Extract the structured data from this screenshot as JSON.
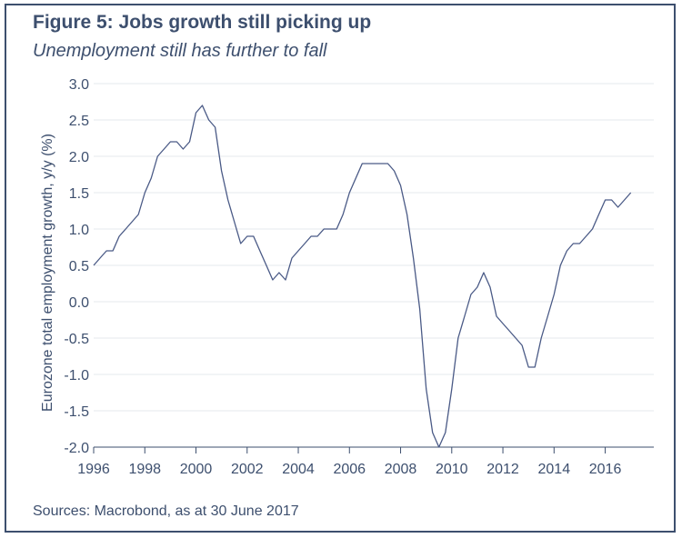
{
  "figure": {
    "title": "Figure 5: Jobs growth still picking up",
    "subtitle": "Unemployment still has further to fall",
    "source": "Sources: Macrobond, as at 30 June 2017"
  },
  "colors": {
    "text": "#3d4f6e",
    "line": "#4a5a86",
    "grid": "#e6e8ee",
    "border": "#3d4f6e"
  },
  "chart_data": {
    "type": "line",
    "title": "",
    "xlabel": "",
    "ylabel": "Eurozone total employment growth, y/y (%)",
    "xlim": [
      1996,
      2017.9
    ],
    "ylim": [
      -2.0,
      3.0
    ],
    "grid": true,
    "x_ticks": [
      1996,
      1998,
      2000,
      2002,
      2004,
      2006,
      2008,
      2010,
      2012,
      2014,
      2016
    ],
    "x_tick_labels": [
      "1996",
      "1998",
      "2000",
      "2002",
      "2004",
      "2006",
      "2008",
      "2010",
      "2012",
      "2014",
      "2016"
    ],
    "y_ticks": [
      3.0,
      2.5,
      2.0,
      1.5,
      1.0,
      0.5,
      0.0,
      -0.5,
      -1.0,
      -1.5,
      -2.0
    ],
    "y_tick_labels": [
      "3.0",
      "2.5",
      "2.0",
      "1.5",
      "1.0",
      "0.5",
      "0.0",
      "-0.5",
      "-1.0",
      "-1.5",
      "-2.0"
    ],
    "series": [
      {
        "x": [
          1996.0,
          1996.25,
          1996.5,
          1996.75,
          1997.0,
          1997.25,
          1997.5,
          1997.75,
          1998.0,
          1998.25,
          1998.5,
          1998.75,
          1999.0,
          1999.25,
          1999.5,
          1999.75,
          2000.0,
          2000.25,
          2000.5,
          2000.75,
          2001.0,
          2001.25,
          2001.5,
          2001.75,
          2002.0,
          2002.25,
          2002.5,
          2002.75,
          2003.0,
          2003.25,
          2003.5,
          2003.75,
          2004.0,
          2004.25,
          2004.5,
          2004.75,
          2005.0,
          2005.25,
          2005.5,
          2005.75,
          2006.0,
          2006.25,
          2006.5,
          2006.75,
          2007.0,
          2007.25,
          2007.5,
          2007.75,
          2008.0,
          2008.25,
          2008.5,
          2008.75,
          2009.0,
          2009.25,
          2009.5,
          2009.75,
          2010.0,
          2010.25,
          2010.5,
          2010.75,
          2011.0,
          2011.25,
          2011.5,
          2011.75,
          2012.0,
          2012.25,
          2012.5,
          2012.75,
          2013.0,
          2013.25,
          2013.5,
          2013.75,
          2014.0,
          2014.25,
          2014.5,
          2014.75,
          2015.0,
          2015.25,
          2015.5,
          2015.75,
          2016.0,
          2016.25,
          2016.5,
          2016.75,
          2017.0
        ],
        "y": [
          0.5,
          0.6,
          0.7,
          0.7,
          0.9,
          1.0,
          1.1,
          1.2,
          1.5,
          1.7,
          2.0,
          2.1,
          2.2,
          2.2,
          2.1,
          2.2,
          2.6,
          2.7,
          2.5,
          2.4,
          1.8,
          1.4,
          1.1,
          0.8,
          0.9,
          0.9,
          0.7,
          0.5,
          0.3,
          0.4,
          0.3,
          0.6,
          0.7,
          0.8,
          0.9,
          0.9,
          1.0,
          1.0,
          1.0,
          1.2,
          1.5,
          1.7,
          1.9,
          1.9,
          1.9,
          1.9,
          1.9,
          1.8,
          1.6,
          1.2,
          0.6,
          -0.1,
          -1.2,
          -1.8,
          -2.0,
          -1.8,
          -1.2,
          -0.5,
          -0.2,
          0.1,
          0.2,
          0.4,
          0.2,
          -0.2,
          -0.3,
          -0.4,
          -0.5,
          -0.6,
          -0.9,
          -0.9,
          -0.5,
          -0.2,
          0.1,
          0.5,
          0.7,
          0.8,
          0.8,
          0.9,
          1.0,
          1.2,
          1.4,
          1.4,
          1.3,
          1.4,
          1.5
        ]
      }
    ]
  }
}
